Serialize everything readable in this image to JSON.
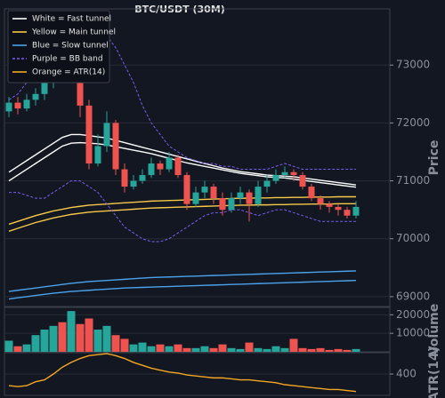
{
  "chart_data": [
    {
      "type": "candlestick",
      "title": "BTC/USDT (30M)",
      "y_label": "Price",
      "ylim": [
        68830,
        73970
      ],
      "yticks": [
        69000,
        70000,
        71000,
        72000,
        73000
      ],
      "grid": true,
      "up_color": "#26a69a",
      "down_color": "#ef5350",
      "open": [
        72200,
        72350,
        72250,
        72400,
        72500,
        72700,
        72900,
        72800,
        73100,
        72300,
        71300,
        71600,
        72000,
        71200,
        70900,
        71000,
        71100,
        71300,
        71200,
        71400,
        71100,
        70600,
        70800,
        70900,
        70700,
        70500,
        70700,
        70800,
        70600,
        70900,
        71000,
        71100,
        71150,
        71100,
        70900,
        70700,
        70600,
        70550,
        70500,
        70400
      ],
      "high": [
        72450,
        72450,
        72500,
        72600,
        72850,
        73050,
        73000,
        73700,
        73200,
        72400,
        71800,
        72200,
        72050,
        71300,
        71100,
        71200,
        71400,
        71350,
        71500,
        71450,
        71150,
        70900,
        71000,
        70950,
        70800,
        70800,
        70900,
        70850,
        71000,
        71100,
        71200,
        71250,
        71200,
        71150,
        70950,
        70750,
        70650,
        70600,
        70550,
        70650
      ],
      "low": [
        72100,
        72150,
        72200,
        72300,
        72400,
        72600,
        72700,
        72700,
        72100,
        71200,
        71250,
        71500,
        71100,
        70800,
        70850,
        70950,
        71050,
        71100,
        71150,
        71050,
        70500,
        70550,
        70700,
        70600,
        70400,
        70450,
        70600,
        70300,
        70550,
        70800,
        70950,
        71050,
        71000,
        70850,
        70650,
        70500,
        70450,
        70400,
        70350,
        70350
      ],
      "close": [
        72350,
        72250,
        72400,
        72500,
        72700,
        72900,
        72800,
        73100,
        72300,
        71300,
        71600,
        72000,
        71200,
        70900,
        71000,
        71100,
        71300,
        71200,
        71400,
        71100,
        70600,
        70800,
        70900,
        70700,
        70500,
        70700,
        70800,
        70600,
        70900,
        71000,
        71100,
        71150,
        71100,
        70900,
        70700,
        70600,
        70550,
        70500,
        70400,
        70550
      ],
      "series": [
        {
          "name": "White = Fast tunnel",
          "color": "#ffffff",
          "style": "solid",
          "upper": [
            71150,
            71250,
            71350,
            71450,
            71550,
            71650,
            71750,
            71800,
            71800,
            71780,
            71760,
            71740,
            71700,
            71660,
            71620,
            71580,
            71540,
            71500,
            71460,
            71420,
            71380,
            71340,
            71300,
            71260,
            71220,
            71190,
            71160,
            71140,
            71120,
            71100,
            71090,
            71080,
            71070,
            71050,
            71030,
            71010,
            70990,
            70970,
            70950,
            70930
          ],
          "lower": [
            71000,
            71100,
            71200,
            71300,
            71400,
            71500,
            71600,
            71650,
            71660,
            71650,
            71640,
            71620,
            71590,
            71560,
            71530,
            71500,
            71470,
            71430,
            71390,
            71350,
            71310,
            71280,
            71250,
            71220,
            71190,
            71160,
            71130,
            71110,
            71090,
            71070,
            71060,
            71050,
            71030,
            71010,
            70990,
            70970,
            70950,
            70930,
            70910,
            70890
          ]
        },
        {
          "name": "Yellow = Main tunnel",
          "color": "#f7c948",
          "style": "solid",
          "upper": [
            70250,
            70300,
            70350,
            70400,
            70440,
            70480,
            70510,
            70540,
            70560,
            70580,
            70590,
            70600,
            70610,
            70620,
            70630,
            70640,
            70650,
            70655,
            70660,
            70665,
            70670,
            70675,
            70680,
            70685,
            70690,
            70695,
            70700,
            70700,
            70705,
            70705,
            70710,
            70710,
            70715,
            70715,
            70720,
            70720,
            70720,
            70725,
            70725,
            70725
          ],
          "lower": [
            70130,
            70180,
            70230,
            70280,
            70320,
            70360,
            70390,
            70420,
            70440,
            70460,
            70470,
            70480,
            70490,
            70500,
            70510,
            70520,
            70530,
            70535,
            70540,
            70545,
            70550,
            70555,
            70560,
            70565,
            70570,
            70575,
            70580,
            70580,
            70585,
            70585,
            70590,
            70590,
            70595,
            70595,
            70600,
            70600,
            70600,
            70605,
            70605,
            70605
          ]
        },
        {
          "name": "Blue = Slow tunnel",
          "color": "#4aa3ec",
          "style": "solid",
          "upper": [
            69090,
            69110,
            69130,
            69150,
            69170,
            69190,
            69210,
            69230,
            69245,
            69260,
            69270,
            69280,
            69290,
            69300,
            69310,
            69320,
            69330,
            69335,
            69340,
            69345,
            69350,
            69355,
            69360,
            69365,
            69370,
            69375,
            69380,
            69385,
            69390,
            69395,
            69400,
            69405,
            69410,
            69415,
            69420,
            69425,
            69430,
            69435,
            69440,
            69445
          ],
          "lower": [
            68960,
            68980,
            69000,
            69020,
            69040,
            69060,
            69075,
            69090,
            69100,
            69110,
            69120,
            69130,
            69140,
            69150,
            69155,
            69160,
            69165,
            69170,
            69175,
            69180,
            69185,
            69190,
            69195,
            69200,
            69205,
            69210,
            69215,
            69220,
            69225,
            69230,
            69235,
            69240,
            69245,
            69250,
            69255,
            69260,
            69265,
            69270,
            69275,
            69280
          ]
        },
        {
          "name": "Purple = BB band",
          "color": "#7c5cf0",
          "style": "dashed",
          "upper": [
            72400,
            72500,
            72700,
            72900,
            73200,
            73400,
            73550,
            73600,
            73650,
            73650,
            73600,
            73500,
            73300,
            73000,
            72700,
            72300,
            72000,
            71800,
            71600,
            71500,
            71400,
            71350,
            71300,
            71300,
            71250,
            71250,
            71200,
            71200,
            71200,
            71200,
            71250,
            71300,
            71250,
            71200,
            71200,
            71200,
            71200,
            71200,
            71200,
            71200
          ],
          "lower": [
            70800,
            70800,
            70750,
            70700,
            70700,
            70800,
            70900,
            71000,
            71000,
            70900,
            70800,
            70600,
            70400,
            70200,
            70100,
            70000,
            69950,
            69950,
            70000,
            70100,
            70200,
            70300,
            70400,
            70450,
            70450,
            70500,
            70500,
            70450,
            70400,
            70450,
            70500,
            70500,
            70450,
            70400,
            70350,
            70300,
            70300,
            70300,
            70300,
            70300
          ]
        }
      ]
    },
    {
      "type": "bar",
      "y_label": "Volume",
      "ylim": [
        0,
        24000
      ],
      "yticks": [
        10000,
        20000
      ],
      "grid": true,
      "values": [
        6000,
        3000,
        4000,
        9000,
        12000,
        14000,
        16000,
        22000,
        15000,
        18000,
        12000,
        14000,
        9000,
        7000,
        4000,
        5000,
        3000,
        4000,
        3000,
        4000,
        2000,
        2000,
        3000,
        2000,
        4000,
        2000,
        1500,
        5000,
        2000,
        1500,
        3000,
        2000,
        7000,
        2000,
        1500,
        2000,
        1000,
        1500,
        1000,
        1500
      ]
    },
    {
      "type": "line",
      "y_label": "ATR(14)",
      "ylim": [
        180,
        620
      ],
      "yticks": [
        400
      ],
      "grid": true,
      "series": [
        {
          "name": "Orange = ATR(14)",
          "color": "#f5a623",
          "style": "solid",
          "values": [
            280,
            270,
            280,
            320,
            340,
            400,
            470,
            520,
            560,
            590,
            600,
            610,
            590,
            560,
            520,
            490,
            460,
            440,
            420,
            410,
            390,
            380,
            370,
            360,
            360,
            350,
            340,
            340,
            330,
            320,
            310,
            290,
            280,
            270,
            260,
            250,
            240,
            240,
            230,
            220
          ]
        }
      ]
    }
  ]
}
